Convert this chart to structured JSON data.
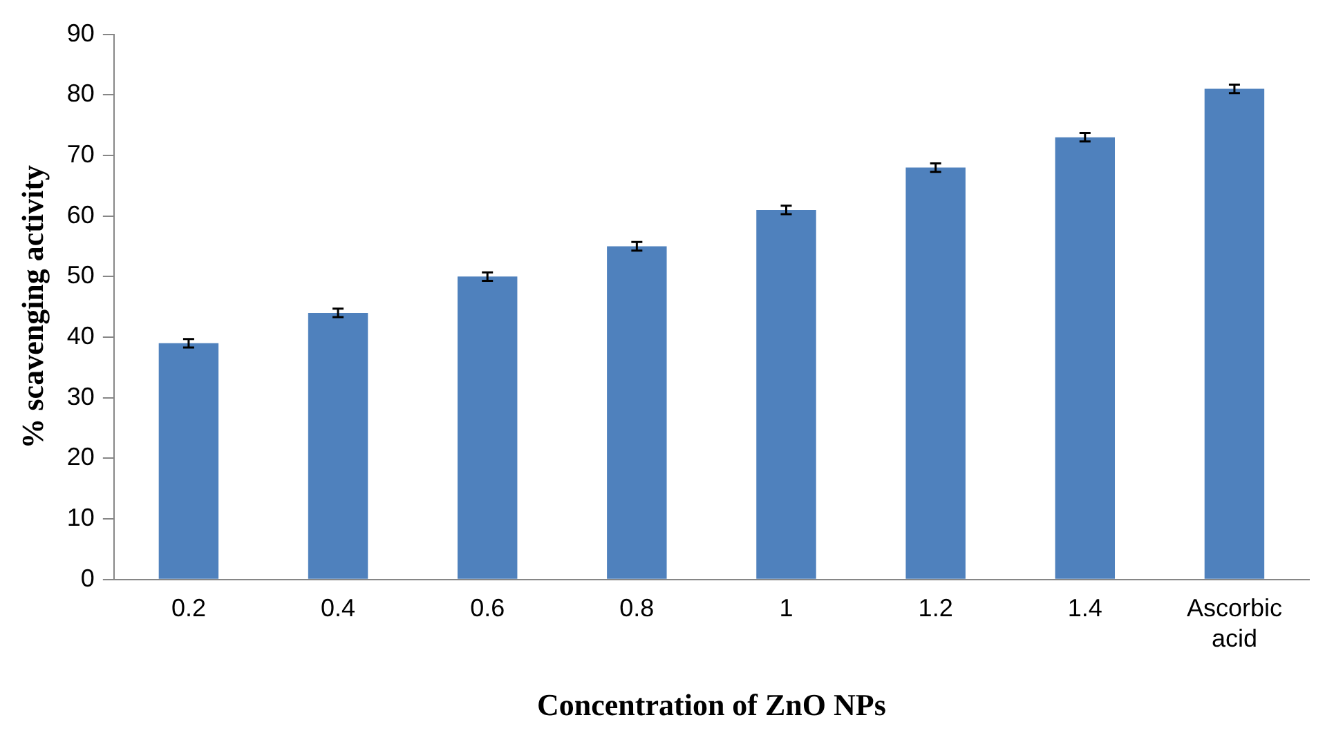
{
  "chart_data": {
    "type": "bar",
    "xlabel": "Concentration of ZnO NPs",
    "ylabel": "% scavenging activity",
    "categories": [
      "0.2",
      "0.4",
      "0.6",
      "0.8",
      "1",
      "1.2",
      "1.4",
      "Ascorbic acid"
    ],
    "values": [
      39,
      44,
      50,
      55,
      61,
      68,
      73,
      81
    ],
    "errors": [
      0.7,
      0.7,
      0.7,
      0.7,
      0.7,
      0.7,
      0.7,
      0.7
    ],
    "color": "#4f81bd",
    "ylim": [
      0,
      90
    ],
    "yticks": [
      0,
      10,
      20,
      30,
      40,
      50,
      60,
      70,
      80,
      90
    ],
    "grid": false,
    "legend": false
  }
}
